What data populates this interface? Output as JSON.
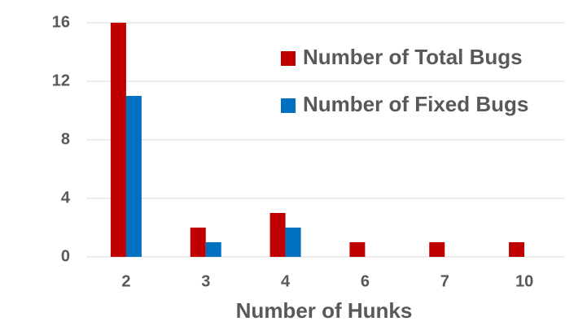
{
  "chart_data": {
    "type": "bar",
    "x_label": "Number of Hunks",
    "categories": [
      "2",
      "3",
      "4",
      "6",
      "7",
      "10"
    ],
    "series": [
      {
        "name": "Number of Total Bugs",
        "color": "#c00000",
        "values": [
          16,
          2,
          3,
          1,
          1,
          1
        ]
      },
      {
        "name": "Number of Fixed Bugs",
        "color": "#0070c0",
        "values": [
          11,
          1,
          2,
          0,
          0,
          0
        ]
      }
    ],
    "ylim": [
      0,
      16
    ],
    "yticks": [
      0,
      4,
      8,
      12,
      16
    ],
    "grid": true,
    "legend": "upper right"
  }
}
